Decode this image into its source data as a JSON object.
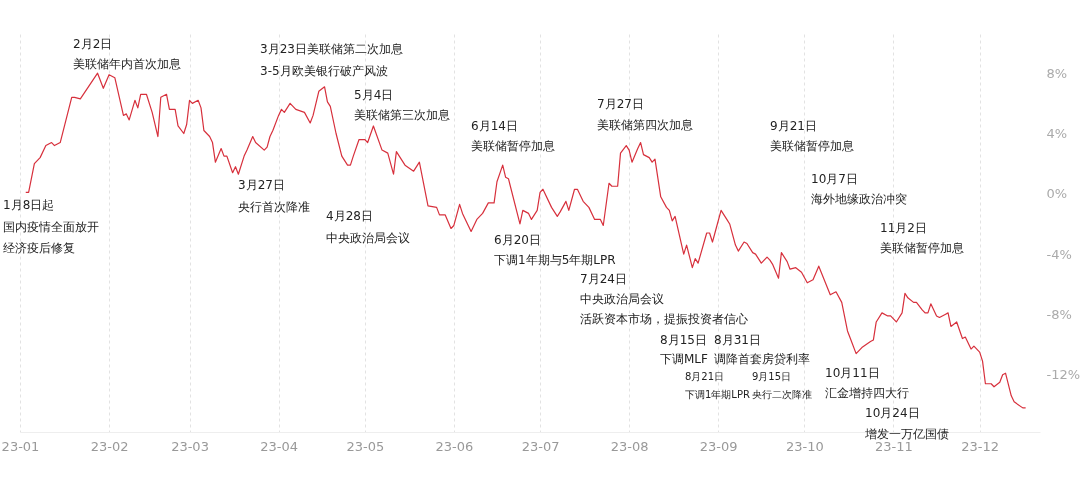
{
  "chart_data": {
    "type": "line",
    "grid": "x",
    "xlim": [
      "--01-01",
      "--12-22"
    ],
    "xticks": [
      {
        "value": "--01-01",
        "label": "23-01"
      },
      {
        "value": "--02-01",
        "label": "23-02"
      },
      {
        "value": "--03-01",
        "label": "23-03"
      },
      {
        "value": "--04-01",
        "label": "23-04"
      },
      {
        "value": "--05-01",
        "label": "23-05"
      },
      {
        "value": "--06-01",
        "label": "23-06"
      },
      {
        "value": "--07-01",
        "label": "23-07"
      },
      {
        "value": "--08-01",
        "label": "23-08"
      },
      {
        "value": "--09-01",
        "label": "23-09"
      },
      {
        "value": "--10-01",
        "label": "23-10"
      },
      {
        "value": "--11-01",
        "label": "23-11"
      },
      {
        "value": "--12-01",
        "label": "23-12"
      }
    ],
    "ylim": [
      -15.8,
      10.6
    ],
    "yticks": [
      {
        "value": 8,
        "label": "8%"
      },
      {
        "value": 4,
        "label": "4%"
      },
      {
        "value": 0,
        "label": "0%"
      },
      {
        "value": -4,
        "label": "-4%"
      },
      {
        "value": -8,
        "label": "-8%"
      },
      {
        "value": -12,
        "label": "-12%"
      }
    ],
    "series": [
      {
        "color": "#d7303c",
        "x": [
          "--01-03",
          "--01-04",
          "--01-06",
          "--01-08",
          "--01-10",
          "--01-12",
          "--01-13",
          "--01-15",
          "--01-19",
          "--01-20",
          "--01-22",
          "--01-28",
          "--01-30",
          "--02-01",
          "--02-03",
          "--02-06",
          "--02-07",
          "--02-08",
          "--02-10",
          "--02-11",
          "--02-12",
          "--02-14",
          "--02-16",
          "--02-18",
          "--02-19",
          "--02-21",
          "--02-22",
          "--02-24",
          "--02-25",
          "--02-27",
          "--02-28",
          "--03-01",
          "--03-02",
          "--03-04",
          "--03-05",
          "--03-06",
          "--03-08",
          "--03-09",
          "--03-10",
          "--03-12",
          "--03-13",
          "--03-14",
          "--03-16",
          "--03-17",
          "--03-18",
          "--03-20",
          "--03-21",
          "--03-23",
          "--03-24",
          "--03-27",
          "--03-28",
          "--03-29",
          "--03-30",
          "--04-01",
          "--04-02",
          "--04-03",
          "--04-05",
          "--04-07",
          "--04-10",
          "--04-12",
          "--04-13",
          "--04-15",
          "--04-17",
          "--04-18",
          "--04-19",
          "--04-21",
          "--04-23",
          "--04-25",
          "--04-26",
          "--04-27",
          "--04-29",
          "--05-01",
          "--05-02",
          "--05-04",
          "--05-07",
          "--05-09",
          "--05-11",
          "--05-12",
          "--05-15",
          "--05-18",
          "--05-20",
          "--05-23",
          "--05-26",
          "--05-27",
          "--05-29",
          "--05-31",
          "--06-01",
          "--06-03",
          "--06-04",
          "--06-06",
          "--06-07",
          "--06-09",
          "--06-11",
          "--06-13",
          "--06-15",
          "--06-16",
          "--06-18",
          "--06-19",
          "--06-20",
          "--06-24",
          "--06-25",
          "--06-27",
          "--06-28",
          "--06-30",
          "--07-01",
          "--07-02",
          "--07-05",
          "--07-07",
          "--07-08",
          "--07-10",
          "--07-11",
          "--07-13",
          "--07-14",
          "--07-16",
          "--07-18",
          "--07-20",
          "--07-22",
          "--07-23",
          "--07-25",
          "--07-26",
          "--07-28",
          "--07-29",
          "--07-31",
          "--08-01",
          "--08-02",
          "--08-04",
          "--08-05",
          "--08-06",
          "--08-08",
          "--08-09",
          "--08-10",
          "--08-12",
          "--08-14",
          "--08-15",
          "--08-16",
          "--08-17",
          "--08-20",
          "--08-21",
          "--08-23",
          "--08-24",
          "--08-25",
          "--08-28",
          "--08-29",
          "--08-30",
          "--08-31",
          "--09-02",
          "--09-04",
          "--09-05",
          "--09-07",
          "--09-08",
          "--09-10",
          "--09-11",
          "--09-13",
          "--09-14",
          "--09-16",
          "--09-18",
          "--09-19",
          "--09-20",
          "--09-22",
          "--09-23",
          "--09-25",
          "--09-26",
          "--09-28",
          "--09-30",
          "--10-02",
          "--10-04",
          "--10-06",
          "--10-10",
          "--10-12",
          "--10-14",
          "--10-16",
          "--10-17",
          "--10-19",
          "--10-21",
          "--10-24",
          "--10-25",
          "--10-26",
          "--10-28",
          "--10-30",
          "--10-31",
          "--11-02",
          "--11-04",
          "--11-05",
          "--11-06",
          "--11-08",
          "--11-09",
          "--11-11",
          "--11-12",
          "--11-13",
          "--11-14",
          "--11-16",
          "--11-17",
          "--11-19",
          "--11-20",
          "--11-21",
          "--11-23",
          "--11-25",
          "--11-26",
          "--11-28",
          "--11-29",
          "--12-01",
          "--12-02",
          "--12-03",
          "--12-05",
          "--12-06",
          "--12-08",
          "--12-09",
          "--12-10",
          "--12-12",
          "--12-13",
          "--12-16",
          "--12-17"
        ],
        "values": [
          0.1,
          0.1,
          2.0,
          2.4,
          3.2,
          3.4,
          3.2,
          3.4,
          6.4,
          6.4,
          6.3,
          8.0,
          7.0,
          7.9,
          7.7,
          5.2,
          5.3,
          4.9,
          6.2,
          5.7,
          6.6,
          6.6,
          5.4,
          3.8,
          6.4,
          6.6,
          5.6,
          5.6,
          4.5,
          4.0,
          4.6,
          6.2,
          6.0,
          6.2,
          5.7,
          4.2,
          3.8,
          3.4,
          2.1,
          3.0,
          2.5,
          2.5,
          1.4,
          1.8,
          1.3,
          2.5,
          2.9,
          3.8,
          3.4,
          2.9,
          3.1,
          3.8,
          4.2,
          5.2,
          5.6,
          5.4,
          6.0,
          5.6,
          5.4,
          4.7,
          5.2,
          6.8,
          7.1,
          6.1,
          5.8,
          4.0,
          2.5,
          1.9,
          1.9,
          2.5,
          3.6,
          3.6,
          3.4,
          4.5,
          2.9,
          2.7,
          1.3,
          2.8,
          1.9,
          1.5,
          2.1,
          -0.8,
          -0.9,
          -1.4,
          -1.4,
          -2.3,
          -2.1,
          -0.7,
          -1.3,
          -2.1,
          -2.5,
          -1.7,
          -1.3,
          -0.6,
          -0.6,
          0.8,
          1.9,
          1.1,
          1.0,
          -2.0,
          -1.1,
          -1.3,
          -1.7,
          -1.1,
          0.1,
          0.3,
          -0.9,
          -1.5,
          -1.2,
          -0.5,
          -1.1,
          0.3,
          0.3,
          -0.5,
          -0.9,
          -1.7,
          -1.7,
          -2.1,
          0.7,
          0.5,
          0.5,
          2.7,
          3.2,
          2.9,
          2.1,
          3.0,
          3.4,
          2.6,
          2.4,
          2.1,
          2.3,
          -0.2,
          -0.9,
          -1.1,
          -1.8,
          -1.5,
          -4.0,
          -3.4,
          -4.9,
          -4.3,
          -4.6,
          -2.6,
          -2.6,
          -3.2,
          -2.5,
          -1.1,
          -1.7,
          -2.0,
          -3.4,
          -3.8,
          -3.2,
          -3.3,
          -3.9,
          -4.0,
          -4.6,
          -4.2,
          -4.4,
          -4.7,
          -5.6,
          -3.9,
          -4.5,
          -5.0,
          -4.9,
          -5.2,
          -5.9,
          -5.7,
          -4.8,
          -6.7,
          -6.5,
          -7.2,
          -9.1,
          -9.6,
          -10.6,
          -10.2,
          -9.8,
          -9.7,
          -8.5,
          -7.9,
          -8.1,
          -8.1,
          -8.5,
          -7.9,
          -6.6,
          -6.9,
          -7.2,
          -7.2,
          -7.7,
          -7.9,
          -7.9,
          -7.3,
          -8.1,
          -8.2,
          -8.0,
          -7.9,
          -8.8,
          -8.5,
          -9.6,
          -9.5,
          -10.3,
          -10.1,
          -10.5,
          -11.1,
          -12.6,
          -12.6,
          -12.8,
          -12.5,
          -12.0,
          -11.9,
          -13.4,
          -13.8,
          -14.2,
          -14.2
        ]
      }
    ],
    "annotations": [
      "1月8日起",
      "国内疫情全面放开",
      "经济疫后修复",
      "2月2日",
      "美联储年内首次加息",
      "3月23日美联储第二次加息",
      "3-5月欧美银行破产风波",
      "3月27日",
      "央行首次降准",
      "5月4日",
      "美联储第三次加息",
      "4月28日",
      "中央政治局会议",
      "6月14日",
      "美联储暂停加息",
      "6月20日",
      "下调1年期与5年期LPR",
      "7月27日",
      "美联储第四次加息",
      "7月24日",
      "中央政治局会议",
      "活跃资本市场，提振投资者信心",
      "8月15日",
      "下调MLF",
      "8月31日",
      "调降首套房贷利率",
      "8月21日",
      "下调1年期LPR",
      "9月15日",
      "央行二次降准",
      "9月21日",
      "美联储暂停加息",
      "10月7日",
      "海外地缘政治冲突",
      "10月11日",
      "汇金增持四大行",
      "10月24日",
      "增发一万亿国债",
      "11月2日",
      "美联储暂停加息"
    ]
  }
}
